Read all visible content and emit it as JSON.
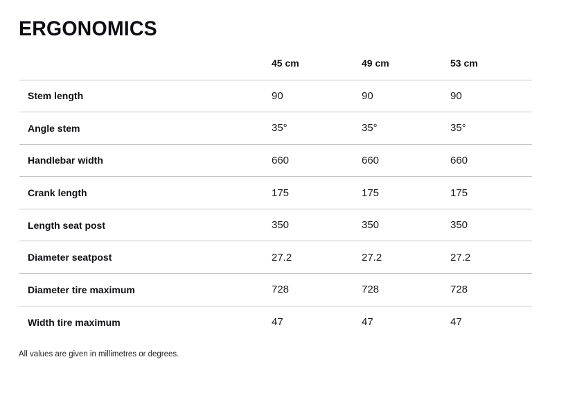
{
  "page": {
    "title": "ERGONOMICS",
    "footnote": "All values are given in millimetres or degrees."
  },
  "table": {
    "columns": [
      "45 cm",
      "49 cm",
      "53 cm"
    ],
    "rows": [
      {
        "label": "Stem length",
        "values": [
          "90",
          "90",
          "90"
        ]
      },
      {
        "label": "Angle stem",
        "values": [
          "35°",
          "35°",
          "35°"
        ]
      },
      {
        "label": "Handlebar width",
        "values": [
          "660",
          "660",
          "660"
        ]
      },
      {
        "label": "Crank length",
        "values": [
          "175",
          "175",
          "175"
        ]
      },
      {
        "label": "Length seat post",
        "values": [
          "350",
          "350",
          "350"
        ]
      },
      {
        "label": "Diameter seatpost",
        "values": [
          "27.2",
          "27.2",
          "27.2"
        ]
      },
      {
        "label": "Diameter tire maximum",
        "values": [
          "728",
          "728",
          "728"
        ]
      },
      {
        "label": "Width tire maximum",
        "values": [
          "47",
          "47",
          "47"
        ]
      }
    ]
  },
  "colors": {
    "background": "#ffffff",
    "text": "#141414",
    "title": "#0d0d12",
    "divider": "#c3c5c6"
  }
}
